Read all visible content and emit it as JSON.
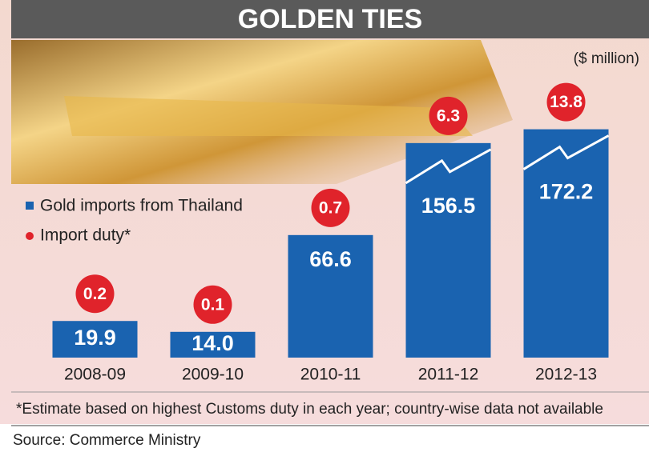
{
  "chart_data": {
    "type": "bar",
    "title": "GOLDEN TIES",
    "unit": "($ million)",
    "categories": [
      "2008-09",
      "2009-10",
      "2010-11",
      "2011-12",
      "2012-13"
    ],
    "series": [
      {
        "name": "Gold imports from Thailand",
        "color": "#1a63b0",
        "values": [
          19.9,
          14.0,
          66.6,
          156.5,
          172.2
        ],
        "value_labels": [
          "19.9",
          "14.0",
          "66.6",
          "156.5",
          "172.2"
        ]
      },
      {
        "name": "Import duty*",
        "color": "#e0232b",
        "values": [
          0.2,
          0.1,
          0.7,
          6.3,
          13.8
        ]
      }
    ],
    "note": "*Estimate based on highest Customs duty in each year; country-wise data not available",
    "source": "Source: Commerce Ministry"
  }
}
